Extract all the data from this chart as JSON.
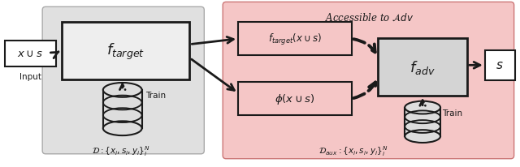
{
  "fig_width": 6.4,
  "fig_height": 2.07,
  "dpi": 100,
  "bg_color": "#ffffff",
  "gray_bg": "#e0e0e0",
  "pink_bg": "#f5c6c6",
  "box_facecolor": "#eeeeee",
  "box_edgecolor": "#1a1a1a",
  "pink_box_facecolor": "#f5c6c6",
  "pink_box_edgecolor": "#1a1a1a",
  "adv_box_facecolor": "#d4d4d4",
  "adv_box_edgecolor": "#1a1a1a",
  "output_box_facecolor": "#ffffff",
  "output_box_edgecolor": "#1a1a1a",
  "arrow_color": "#1a1a1a",
  "text_color": "#1a1a1a",
  "accessible_label": "Accessible to $\\mathcal{A}dv$",
  "D_label": "$\\mathcal{D} : \\{x_i, s_i, y_i\\}_i^N$",
  "Daux_label": "$\\mathcal{D}_{aux} : \\{x_i, s_i, y_i\\}_i^N$",
  "input_label": "$x \\cup s$",
  "input_sublabel": "Input",
  "ftarget_label": "$f_{target}$",
  "ftarget_output_label": "$f_{target}(x \\cup s)$",
  "phi_label": "$\\phi(x \\cup s)$",
  "fadv_label": "$f_{adv}$",
  "s_label": "$s$",
  "train1_label": "Train",
  "train2_label": "Train"
}
